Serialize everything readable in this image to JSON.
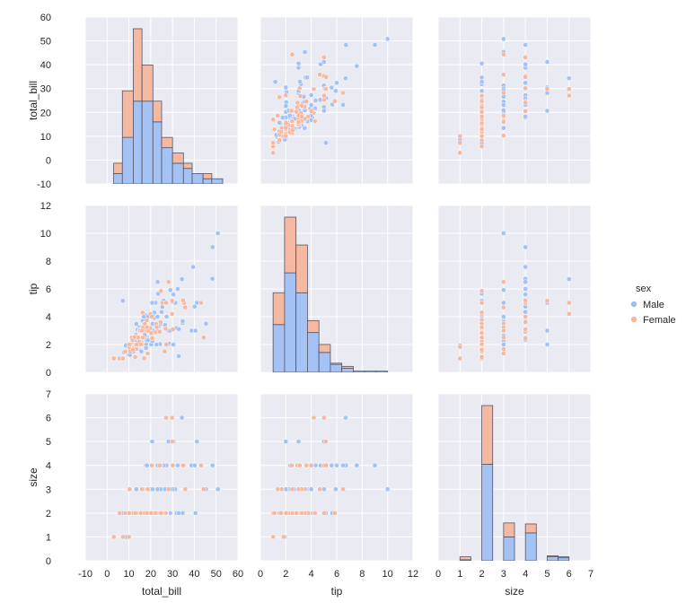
{
  "chart_data": {
    "type": "scatter",
    "grid": true,
    "variables": [
      "total_bill",
      "tip",
      "size"
    ],
    "axis_labels": {
      "total_bill": "total_bill",
      "tip": "tip",
      "size": "size"
    },
    "ranges": {
      "total_bill": [
        -10,
        60
      ],
      "tip": [
        0,
        12
      ],
      "size": [
        0,
        7
      ]
    },
    "ticks": {
      "total_bill": [
        -10,
        0,
        10,
        20,
        30,
        40,
        50,
        60
      ],
      "tip": [
        0,
        2,
        4,
        6,
        8,
        10,
        12
      ],
      "size": [
        0,
        1,
        2,
        3,
        4,
        5,
        6,
        7
      ]
    },
    "legend": {
      "title": "sex",
      "position": "center-right",
      "entries": [
        {
          "name": "Male",
          "color": "#9cbef7"
        },
        {
          "name": "Female",
          "color": "#f6b79c"
        }
      ]
    },
    "hue_colors": {
      "Male": "#a5c2f5",
      "Female": "#f5b9a1"
    },
    "histograms": {
      "total_bill": {
        "bins": [
          [
            3,
            7
          ],
          [
            7,
            12
          ],
          [
            12,
            16
          ],
          [
            16,
            21
          ],
          [
            21,
            25
          ],
          [
            25,
            30
          ],
          [
            30,
            35
          ],
          [
            35,
            39
          ],
          [
            39,
            44
          ],
          [
            44,
            48
          ],
          [
            48,
            53
          ]
        ],
        "male": [
          2,
          9,
          16,
          16,
          12,
          7,
          4,
          3,
          2,
          1,
          1
        ],
        "female": [
          2,
          9,
          14,
          7,
          4,
          2,
          2,
          1,
          0,
          1,
          0
        ]
      },
      "tip": {
        "bins": [
          [
            1,
            1.9
          ],
          [
            1.9,
            2.8
          ],
          [
            2.8,
            3.7
          ],
          [
            3.7,
            4.6
          ],
          [
            4.6,
            5.5
          ],
          [
            5.5,
            6.4
          ],
          [
            6.4,
            7.3
          ],
          [
            7.3,
            8.2
          ],
          [
            8.2,
            9.1
          ],
          [
            9.1,
            10
          ]
        ],
        "male": [
          12,
          25,
          20,
          10,
          5,
          2,
          1,
          0.3,
          0.3,
          0.3
        ],
        "female": [
          8,
          14,
          12,
          3,
          2,
          0.3,
          0.5,
          0,
          0,
          0
        ]
      },
      "size": {
        "bins": [
          [
            1,
            1.5
          ],
          [
            1.5,
            2
          ],
          [
            2,
            2.5
          ],
          [
            2.5,
            3
          ],
          [
            3,
            3.5
          ],
          [
            3.5,
            4
          ],
          [
            4,
            4.5
          ],
          [
            4.5,
            5
          ],
          [
            5,
            5.5
          ],
          [
            5.5,
            6
          ]
        ],
        "male": [
          1,
          0,
          97,
          0,
          24,
          0,
          28,
          0,
          4,
          3
        ],
        "female": [
          3,
          0,
          59,
          0,
          14,
          0,
          9,
          0,
          1,
          1
        ]
      }
    },
    "points": {
      "male": [
        [
          10.34,
          1.66,
          3
        ],
        [
          21.01,
          3.5,
          3
        ],
        [
          23.68,
          3.31,
          2
        ],
        [
          25.29,
          4.71,
          4
        ],
        [
          8.77,
          2.0,
          2
        ],
        [
          26.88,
          3.12,
          4
        ],
        [
          15.04,
          1.96,
          2
        ],
        [
          14.78,
          3.23,
          2
        ],
        [
          10.27,
          1.71,
          2
        ],
        [
          15.42,
          1.57,
          2
        ],
        [
          18.43,
          3.0,
          4
        ],
        [
          21.58,
          3.92,
          2
        ],
        [
          16.29,
          3.71,
          3
        ],
        [
          20.65,
          3.35,
          3
        ],
        [
          17.92,
          4.08,
          2
        ],
        [
          39.42,
          7.58,
          4
        ],
        [
          19.82,
          3.18,
          2
        ],
        [
          17.81,
          2.34,
          4
        ],
        [
          13.37,
          2.0,
          2
        ],
        [
          12.69,
          2.0,
          2
        ],
        [
          21.7,
          4.3,
          2
        ],
        [
          9.55,
          1.45,
          2
        ],
        [
          18.35,
          2.5,
          4
        ],
        [
          17.78,
          3.27,
          2
        ],
        [
          24.06,
          3.6,
          3
        ],
        [
          16.31,
          2.0,
          3
        ],
        [
          18.69,
          2.31,
          3
        ],
        [
          31.27,
          5.0,
          3
        ],
        [
          16.04,
          2.24,
          3
        ],
        [
          17.46,
          2.54,
          2
        ],
        [
          13.94,
          3.06,
          2
        ],
        [
          9.68,
          1.32,
          2
        ],
        [
          30.4,
          5.6,
          4
        ],
        [
          18.29,
          3.0,
          2
        ],
        [
          22.23,
          5.0,
          2
        ],
        [
          32.4,
          6.0,
          4
        ],
        [
          28.55,
          2.05,
          3
        ],
        [
          18.04,
          3.0,
          2
        ],
        [
          12.54,
          2.5,
          2
        ],
        [
          9.94,
          1.56,
          2
        ],
        [
          25.0,
          4.34,
          4
        ],
        [
          20.29,
          3.21,
          2
        ],
        [
          13.81,
          2.0,
          2
        ],
        [
          11.02,
          1.98,
          2
        ],
        [
          18.29,
          3.76,
          4
        ],
        [
          17.59,
          2.64,
          3
        ],
        [
          20.08,
          3.15,
          3
        ],
        [
          20.23,
          2.01,
          2
        ],
        [
          15.01,
          2.09,
          2
        ],
        [
          12.02,
          1.97,
          2
        ],
        [
          17.07,
          3.0,
          3
        ],
        [
          14.73,
          2.2,
          2
        ],
        [
          10.51,
          1.25,
          2
        ],
        [
          17.92,
          3.08,
          2
        ],
        [
          27.2,
          4.0,
          4
        ],
        [
          22.76,
          3.0,
          2
        ],
        [
          17.29,
          2.71,
          2
        ],
        [
          16.66,
          3.4,
          2
        ],
        [
          15.98,
          2.03,
          2
        ],
        [
          21.5,
          3.5,
          2
        ],
        [
          12.16,
          2.2,
          2
        ],
        [
          13.42,
          3.48,
          3
        ],
        [
          8.58,
          1.92,
          1
        ],
        [
          18.64,
          1.36,
          3
        ],
        [
          13.81,
          2.0,
          2
        ],
        [
          24.59,
          3.61,
          4
        ],
        [
          48.27,
          6.73,
          4
        ],
        [
          20.45,
          3.0,
          4
        ],
        [
          13.28,
          2.72,
          2
        ],
        [
          24.52,
          3.48,
          3
        ],
        [
          16.58,
          4.0,
          2
        ],
        [
          20.76,
          2.24,
          2
        ],
        [
          30.06,
          2.0,
          3
        ],
        [
          25.89,
          5.16,
          4
        ],
        [
          48.33,
          9.0,
          4
        ],
        [
          28.15,
          3.0,
          5
        ],
        [
          11.59,
          1.5,
          2
        ],
        [
          7.74,
          1.44,
          2
        ],
        [
          34.3,
          6.7,
          6
        ],
        [
          41.19,
          5.0,
          5
        ],
        [
          17.47,
          3.5,
          2
        ],
        [
          24.27,
          2.03,
          2
        ],
        [
          12.76,
          2.23,
          2
        ],
        [
          30.46,
          2.0,
          5
        ],
        [
          18.71,
          4.0,
          3
        ],
        [
          15.69,
          1.5,
          2
        ],
        [
          29.93,
          5.07,
          4
        ],
        [
          26.59,
          3.41,
          3
        ],
        [
          38.73,
          3.0,
          4
        ],
        [
          24.27,
          2.03,
          2
        ],
        [
          40.55,
          3.0,
          2
        ],
        [
          20.69,
          5.0,
          5
        ],
        [
          20.9,
          3.5,
          3
        ],
        [
          30.46,
          2.0,
          5
        ],
        [
          23.1,
          4.0,
          3
        ],
        [
          50.81,
          10.0,
          3
        ],
        [
          15.81,
          3.16,
          2
        ],
        [
          7.25,
          5.15,
          2
        ],
        [
          31.85,
          3.18,
          2
        ],
        [
          16.82,
          4.0,
          2
        ],
        [
          32.9,
          3.11,
          2
        ],
        [
          17.89,
          2.0,
          2
        ],
        [
          14.48,
          2.0,
          2
        ],
        [
          34.63,
          3.55,
          2
        ],
        [
          34.65,
          3.68,
          4
        ],
        [
          23.33,
          5.65,
          2
        ],
        [
          45.35,
          3.5,
          3
        ],
        [
          23.17,
          6.5,
          4
        ],
        [
          40.17,
          4.73,
          4
        ],
        [
          27.28,
          4.0,
          2
        ],
        [
          12.03,
          1.5,
          2
        ],
        [
          21.01,
          3.0,
          2
        ],
        [
          22.49,
          3.5,
          2
        ],
        [
          28.97,
          3.0,
          2
        ],
        [
          22.67,
          2.0,
          2
        ],
        [
          17.82,
          1.75,
          2
        ],
        [
          32.83,
          1.17,
          2
        ],
        [
          29.03,
          5.92,
          3
        ],
        [
          20.92,
          4.08,
          2
        ]
      ],
      "female": [
        [
          16.99,
          1.01,
          2
        ],
        [
          24.59,
          3.61,
          4
        ],
        [
          35.26,
          5.0,
          4
        ],
        [
          14.83,
          3.02,
          2
        ],
        [
          10.33,
          1.67,
          3
        ],
        [
          16.97,
          3.5,
          3
        ],
        [
          20.29,
          2.75,
          2
        ],
        [
          15.77,
          2.23,
          2
        ],
        [
          19.65,
          3.0,
          2
        ],
        [
          26.41,
          1.5,
          2
        ],
        [
          16.45,
          2.47,
          2
        ],
        [
          3.07,
          1.0,
          1
        ],
        [
          22.42,
          3.48,
          2
        ],
        [
          15.06,
          3.0,
          2
        ],
        [
          20.69,
          2.45,
          4
        ],
        [
          14.26,
          2.5,
          2
        ],
        [
          18.24,
          3.76,
          2
        ],
        [
          19.82,
          3.18,
          2
        ],
        [
          11.38,
          2.0,
          2
        ],
        [
          11.35,
          2.5,
          2
        ],
        [
          13.39,
          2.61,
          2
        ],
        [
          18.64,
          1.36,
          3
        ],
        [
          44.3,
          2.5,
          3
        ],
        [
          22.75,
          3.25,
          2
        ],
        [
          8.52,
          1.48,
          2
        ],
        [
          14.73,
          2.2,
          2
        ],
        [
          17.51,
          3.0,
          2
        ],
        [
          10.65,
          1.5,
          2
        ],
        [
          12.43,
          1.8,
          2
        ],
        [
          24.08,
          2.92,
          4
        ],
        [
          11.69,
          2.31,
          2
        ],
        [
          13.42,
          1.68,
          2
        ],
        [
          14.26,
          2.5,
          2
        ],
        [
          15.95,
          2.0,
          2
        ],
        [
          12.48,
          2.52,
          2
        ],
        [
          29.8,
          4.2,
          6
        ],
        [
          8.35,
          1.5,
          2
        ],
        [
          18.78,
          3.0,
          2
        ],
        [
          25.28,
          5.0,
          2
        ],
        [
          16.32,
          4.3,
          2
        ],
        [
          27.18,
          2.0,
          2
        ],
        [
          16.4,
          2.5,
          2
        ],
        [
          19.81,
          4.19,
          2
        ],
        [
          43.11,
          5.0,
          4
        ],
        [
          13.0,
          2.0,
          2
        ],
        [
          12.74,
          2.01,
          2
        ],
        [
          13.0,
          2.0,
          2
        ],
        [
          16.4,
          2.5,
          2
        ],
        [
          20.53,
          4.0,
          4
        ],
        [
          16.47,
          3.23,
          3
        ],
        [
          26.86,
          3.14,
          2
        ],
        [
          25.28,
          5.0,
          2
        ],
        [
          14.73,
          2.2,
          2
        ],
        [
          10.07,
          1.83,
          1
        ],
        [
          34.83,
          5.17,
          4
        ],
        [
          5.75,
          1.0,
          2
        ],
        [
          16.32,
          4.3,
          2
        ],
        [
          22.12,
          2.88,
          2
        ],
        [
          28.17,
          6.5,
          3
        ],
        [
          15.98,
          3.0,
          3
        ],
        [
          11.87,
          1.63,
          2
        ],
        [
          13.51,
          2.0,
          2
        ],
        [
          7.25,
          1.0,
          1
        ],
        [
          35.83,
          4.67,
          3
        ],
        [
          10.09,
          2.0,
          2
        ],
        [
          27.05,
          5.0,
          6
        ],
        [
          12.9,
          1.1,
          2
        ],
        [
          30.14,
          3.09,
          4
        ],
        [
          29.85,
          5.14,
          5
        ],
        [
          15.48,
          2.02,
          2
        ],
        [
          17.31,
          3.5,
          2
        ],
        [
          18.26,
          3.25,
          2
        ],
        [
          24.71,
          5.85,
          2
        ],
        [
          20.27,
          2.83,
          2
        ]
      ]
    }
  }
}
